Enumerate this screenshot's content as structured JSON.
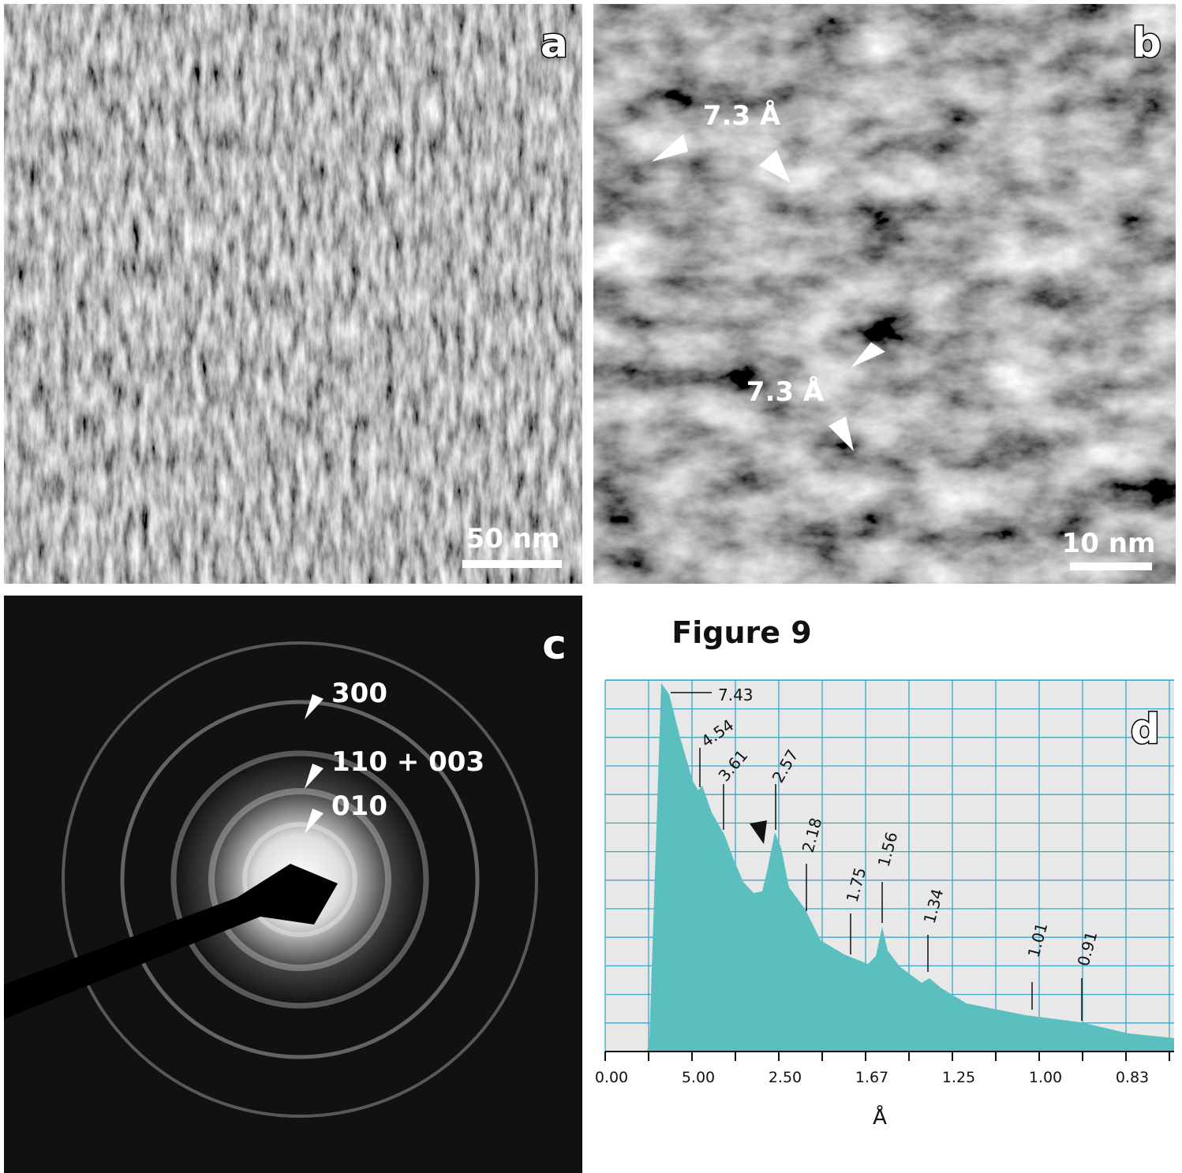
{
  "figure_title": "Figure 9",
  "panels": {
    "a": {
      "label": "a",
      "scale_bar": "50 nm"
    },
    "b": {
      "label": "b",
      "scale_bar": "10 nm",
      "annotations": [
        "7.3 Å",
        "7.3 Å"
      ]
    },
    "c": {
      "label": "c",
      "ring_labels": [
        "300",
        "110 + 003",
        "010"
      ]
    },
    "d": {
      "label": "d",
      "x_tick_labels": [
        "0.00",
        "5.00",
        "2.50",
        "1.67",
        "1.25",
        "1.00",
        "0.83"
      ],
      "x_axis_label": "Å",
      "peak_labels": [
        "7.43",
        "4.54",
        "3.61",
        "2.57",
        "2.18",
        "1.75",
        "1.56",
        "1.34",
        "1.01",
        "0.91"
      ]
    }
  }
}
